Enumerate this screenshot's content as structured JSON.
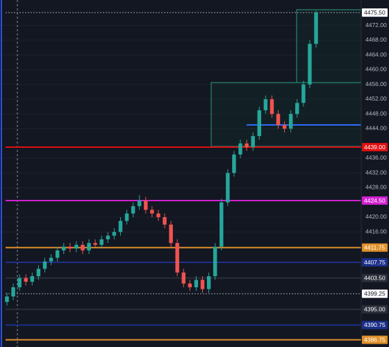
{
  "chart_data": {
    "type": "candlestick",
    "ylim": [
      4384.8,
      4478.9
    ],
    "yticks": [
      {
        "value": 4472,
        "label": "4472.00"
      },
      {
        "value": 4468,
        "label": "4468.00"
      },
      {
        "value": 4464,
        "label": "4464.00"
      },
      {
        "value": 4460,
        "label": "4460.00"
      },
      {
        "value": 4456,
        "label": "4456.00"
      },
      {
        "value": 4452,
        "label": "4452.00"
      },
      {
        "value": 4448,
        "label": "4448.00"
      },
      {
        "value": 4444,
        "label": "4444.00"
      },
      {
        "value": 4436,
        "label": "4436.00"
      },
      {
        "value": 4432,
        "label": "4432.00"
      },
      {
        "value": 4428,
        "label": "4428.00"
      },
      {
        "value": 4420,
        "label": "4420.00"
      },
      {
        "value": 4416,
        "label": "4416.00"
      }
    ],
    "grid": true,
    "up_color": "#26a69a",
    "down_color": "#ef5350",
    "open": [
      4397,
      4398.5,
      4401,
      4403.5,
      4402.5,
      4404,
      4406,
      4408,
      4409,
      4411,
      4412,
      4411.5,
      4412.5,
      4411,
      4413,
      4412.5,
      4414,
      4415,
      4416,
      4419,
      4421,
      4423,
      4424.5,
      4422,
      4421,
      4420,
      4418,
      4413,
      4405,
      4402,
      4401,
      4403,
      4400.5,
      4404,
      4412,
      4424,
      4432,
      4437,
      4440,
      4439,
      4442,
      4449,
      4452,
      4448,
      4445,
      4444,
      4448,
      4451,
      4456,
      4467
    ],
    "high": [
      4399.5,
      4402,
      4404.5,
      4404.5,
      4405,
      4407,
      4409,
      4410,
      4412,
      4413,
      4413,
      4413.5,
      4413.5,
      4414,
      4414,
      4415,
      4416,
      4417,
      4420,
      4422,
      4424,
      4426,
      4425.5,
      4423,
      4422,
      4421,
      4419,
      4414,
      4406,
      4403,
      4404,
      4404,
      4405,
      4413,
      4425,
      4433,
      4438,
      4441,
      4441,
      4443,
      4450,
      4453,
      4453,
      4449,
      4446,
      4449,
      4452,
      4457,
      4468,
      4476
    ],
    "low": [
      4396,
      4397.5,
      4400,
      4401.5,
      4401.5,
      4403,
      4405,
      4407,
      4408,
      4410,
      4410.5,
      4410.5,
      4410,
      4410,
      4412,
      4411.5,
      4413,
      4414,
      4415,
      4418,
      4420,
      4422,
      4421,
      4420,
      4419,
      4417,
      4412,
      4404,
      4401,
      4400,
      4400,
      4399.5,
      4399.5,
      4403,
      4411,
      4423,
      4431,
      4436,
      4438,
      4438,
      4441,
      4448,
      4447,
      4444,
      4443,
      4443,
      4447,
      4450,
      4455,
      4466
    ],
    "close": [
      4398.5,
      4401,
      4403.5,
      4402.5,
      4404,
      4406,
      4408,
      4409,
      4411,
      4412,
      4411.5,
      4412.5,
      4411,
      4413,
      4412.5,
      4414,
      4415,
      4416,
      4419,
      4421,
      4423,
      4424.5,
      4422,
      4421,
      4420,
      4418,
      4413,
      4405,
      4402,
      4401,
      4403,
      4400.5,
      4404,
      4412,
      4424,
      4432,
      4437,
      4440,
      4439,
      4442,
      4449,
      4452,
      4448,
      4445,
      4444,
      4448,
      4451,
      4456,
      4467,
      4475.5
    ],
    "levels": [
      {
        "value": 4475.5,
        "label": "4475.50",
        "color": "#ffffff"
      },
      {
        "value": 4439,
        "label": "4439.00",
        "color": "#e01010"
      },
      {
        "value": 4424.5,
        "label": "4424.50",
        "color": "#d020d0"
      },
      {
        "value": 4411.75,
        "label": "4411.75",
        "color": "#e0902a"
      },
      {
        "value": 4407.75,
        "label": "4407.75",
        "color": "#1c2f8a"
      },
      {
        "value": 4403.5,
        "label": "4403.50",
        "color": "#2a2e39"
      },
      {
        "value": 4399.25,
        "label": "4399.25",
        "color": "#ffffff"
      },
      {
        "value": 4395,
        "label": "4395.00",
        "color": "#2a2e39"
      },
      {
        "value": 4390.75,
        "label": "4390.75",
        "color": "#1c2f8a"
      },
      {
        "value": 4386.75,
        "label": "4386.75",
        "color": "#e0902a"
      }
    ]
  }
}
